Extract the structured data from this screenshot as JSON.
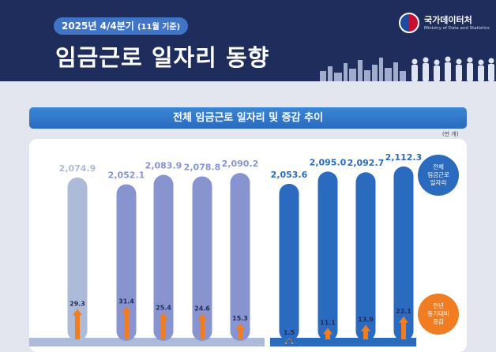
{
  "header": {
    "period_main": "2025년 4/4분기",
    "period_sub": "(11월 기준)",
    "title": "임금근로 일자리 동향",
    "logo_ko": "국가데이터처",
    "logo_en": "Ministry of Data and Statistics"
  },
  "section_title": "전체 임금근로 일자리 및 증감 추이",
  "unit_label": "(만 개)",
  "legend": {
    "total_label": "전체\n임금근로\n일자리",
    "change_label": "전년\n동기대비\n증감"
  },
  "colors": {
    "header_bg": "#1f2d5c",
    "bar_light": "#aebbd8",
    "bar_mid": "#8894d0",
    "bar_dark": "#2a6bbf",
    "arrow": "#f07d22"
  },
  "chart_data": {
    "type": "bar",
    "series": [
      {
        "name": "전체 임금근로 일자리",
        "values": [
          2074.9,
          2052.1,
          2083.9,
          2078.8,
          2090.2,
          2053.6,
          2095.0,
          2092.7,
          2112.3
        ]
      },
      {
        "name": "전년동기대비 증감",
        "values": [
          29.3,
          31.4,
          25.4,
          24.6,
          15.3,
          1.5,
          11.1,
          13.9,
          22.1
        ]
      }
    ],
    "total_labels": [
      "2,074.9",
      "2,052.1",
      "2,083.9",
      "2,078.8",
      "2,090.2",
      "2,053.6",
      "2,095.0",
      "2,092.7",
      "2,112.3"
    ],
    "change_labels": [
      "29.3",
      "31.4",
      "25.4",
      "24.6",
      "15.3",
      "1.5",
      "11.1",
      "13.9",
      "22.1"
    ],
    "bar_shades": [
      "light",
      "mid",
      "mid",
      "mid",
      "mid",
      "dark",
      "dark",
      "dark",
      "dark"
    ]
  }
}
